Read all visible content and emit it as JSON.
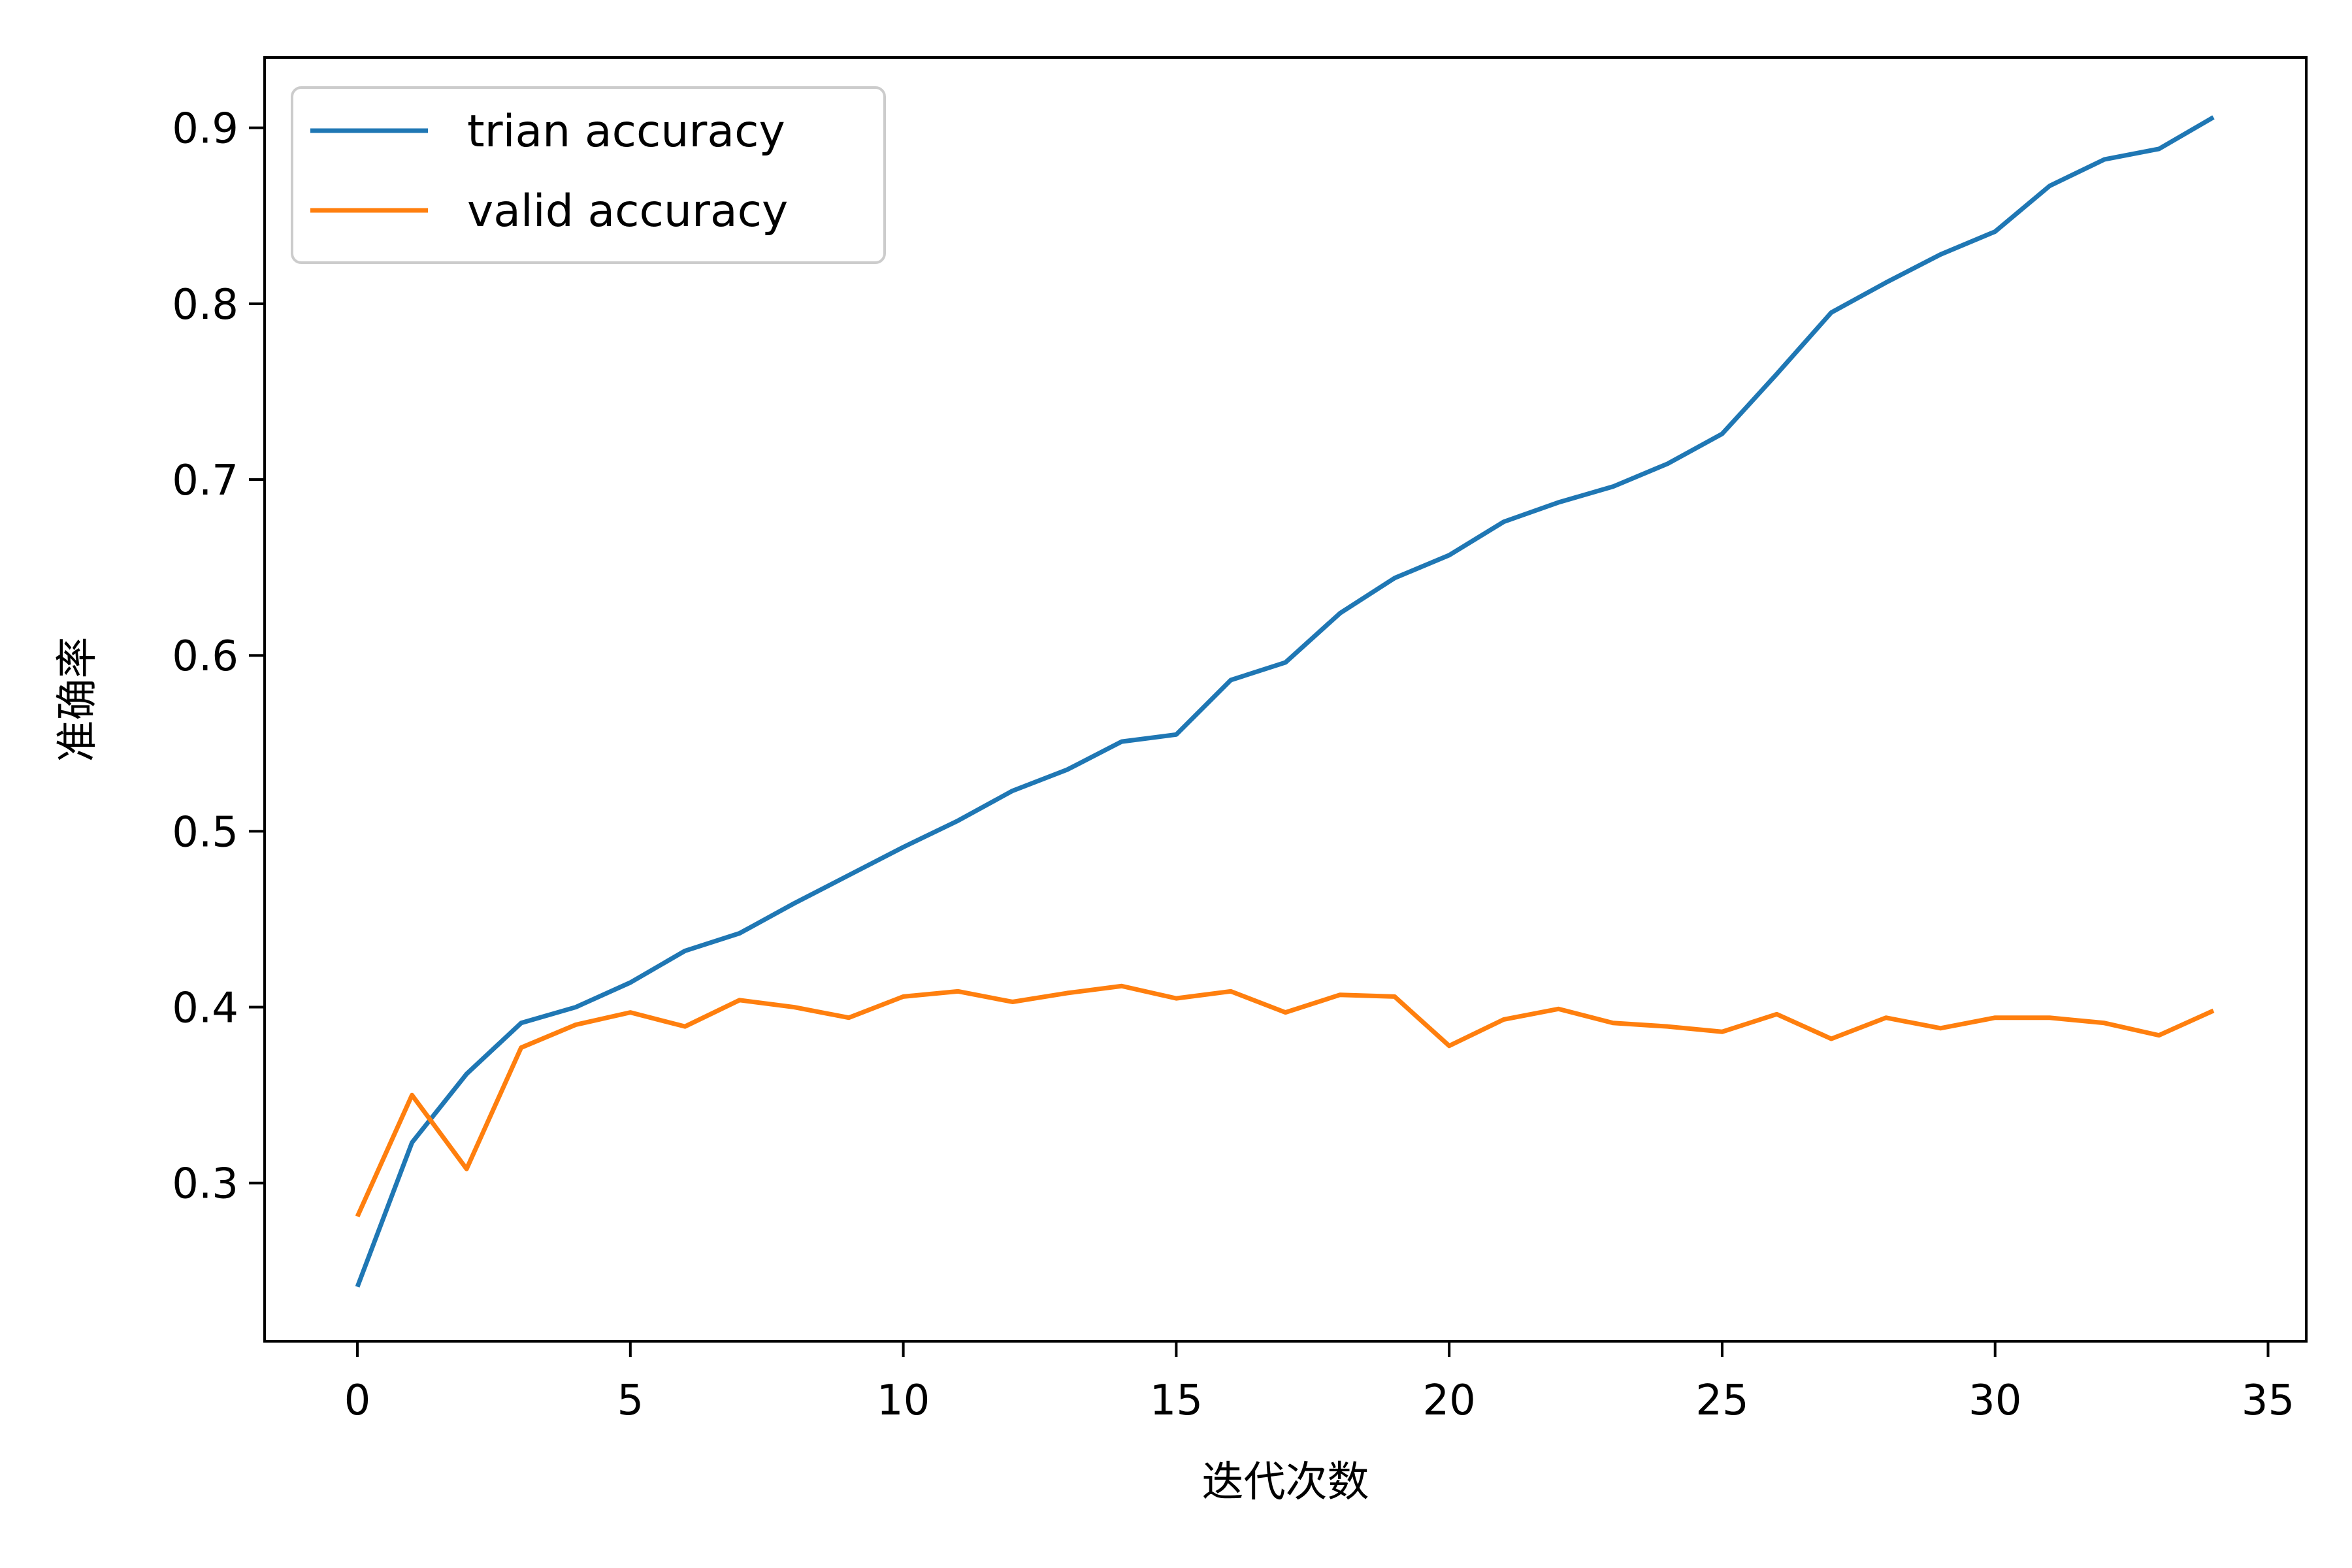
{
  "chart_data": {
    "type": "line",
    "title": "",
    "xlabel": "迭代次数",
    "ylabel": "准确率",
    "xlim": [
      -1.7,
      35.7
    ],
    "ylim": [
      0.21,
      0.94
    ],
    "xticks": [
      0,
      5,
      10,
      15,
      20,
      25,
      30,
      35
    ],
    "yticks": [
      0.3,
      0.4,
      0.5,
      0.6,
      0.7,
      0.8,
      0.9
    ],
    "xtick_labels": [
      "0",
      "5",
      "10",
      "15",
      "20",
      "25",
      "30",
      "35"
    ],
    "ytick_labels": [
      "0.3",
      "0.4",
      "0.5",
      "0.6",
      "0.7",
      "0.8",
      "0.9"
    ],
    "grid": false,
    "legend_position": "top-left",
    "x": [
      0,
      1,
      2,
      3,
      4,
      5,
      6,
      7,
      8,
      9,
      10,
      11,
      12,
      13,
      14,
      15,
      16,
      17,
      18,
      19,
      20,
      21,
      22,
      23,
      24,
      25,
      26,
      27,
      28,
      29,
      30,
      31,
      32,
      33,
      34
    ],
    "series": [
      {
        "name": "trian accuracy",
        "color": "#1f77b4",
        "values": [
          0.241,
          0.323,
          0.362,
          0.391,
          0.4,
          0.414,
          0.432,
          0.442,
          0.459,
          0.475,
          0.491,
          0.506,
          0.523,
          0.535,
          0.551,
          0.555,
          0.586,
          0.596,
          0.624,
          0.644,
          0.657,
          0.676,
          0.687,
          0.696,
          0.709,
          0.726,
          0.76,
          0.795,
          0.812,
          0.828,
          0.841,
          0.867,
          0.882,
          0.888,
          0.906
        ]
      },
      {
        "name": "valid accuracy",
        "color": "#ff7f0e",
        "values": [
          0.281,
          0.35,
          0.308,
          0.377,
          0.39,
          0.397,
          0.389,
          0.404,
          0.4,
          0.394,
          0.406,
          0.409,
          0.403,
          0.408,
          0.412,
          0.405,
          0.409,
          0.397,
          0.407,
          0.406,
          0.378,
          0.393,
          0.399,
          0.391,
          0.389,
          0.386,
          0.396,
          0.382,
          0.394,
          0.388,
          0.394,
          0.394,
          0.391,
          0.384,
          0.398
        ]
      }
    ]
  }
}
